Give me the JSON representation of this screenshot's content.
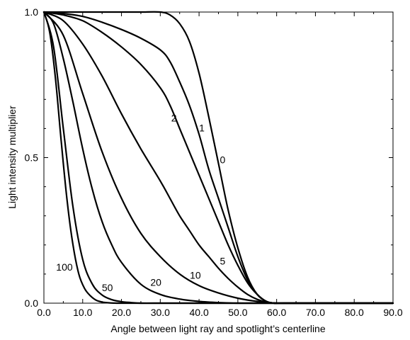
{
  "chart_data": {
    "type": "line",
    "title": "",
    "xlabel": "Angle between light ray and spotlight’s centerline",
    "ylabel": "Light intensity multiplier",
    "xlim": [
      0,
      90
    ],
    "ylim": [
      0,
      1
    ],
    "grid": false,
    "legend": "none",
    "x_ticks": [
      "0.0",
      "10.0",
      "20.0",
      "30.0",
      "40.0",
      "50.0",
      "60.0",
      "70.0",
      "80.0",
      "90.0"
    ],
    "x_tick_values": [
      0,
      10,
      20,
      30,
      40,
      50,
      60,
      70,
      80,
      90
    ],
    "y_ticks": [
      "0.0",
      "0.5",
      "1.0"
    ],
    "y_tick_values": [
      0,
      0.5,
      1.0
    ],
    "series": [
      {
        "name": "0",
        "x": [
          0,
          5,
          10,
          15,
          20,
          25,
          30,
          32.5,
          35,
          37.5,
          40,
          42.5,
          45,
          47.5,
          50,
          52.5,
          55,
          57.5,
          60,
          62,
          90
        ],
        "y": [
          1,
          1,
          1,
          1,
          1,
          1,
          1,
          0.99,
          0.96,
          0.9,
          0.79,
          0.64,
          0.48,
          0.32,
          0.19,
          0.09,
          0.03,
          0.005,
          0,
          0,
          0
        ]
      },
      {
        "name": "1",
        "x": [
          0,
          5,
          10,
          15,
          20,
          25,
          30,
          32.5,
          35,
          37.5,
          40,
          42.5,
          45,
          47.5,
          50,
          52.5,
          55,
          57.5,
          60,
          62,
          90
        ],
        "y": [
          1,
          0.995,
          0.985,
          0.965,
          0.94,
          0.91,
          0.87,
          0.83,
          0.76,
          0.68,
          0.58,
          0.46,
          0.36,
          0.26,
          0.16,
          0.08,
          0.03,
          0.005,
          0,
          0,
          0
        ]
      },
      {
        "name": "2",
        "x": [
          0,
          5,
          10,
          15,
          20,
          25,
          30,
          32.5,
          35,
          37.5,
          40,
          42.5,
          45,
          47.5,
          50,
          52.5,
          55,
          57.5,
          60,
          62,
          90
        ],
        "y": [
          1,
          0.99,
          0.97,
          0.93,
          0.88,
          0.82,
          0.74,
          0.68,
          0.6,
          0.52,
          0.44,
          0.36,
          0.28,
          0.2,
          0.13,
          0.07,
          0.03,
          0.005,
          0,
          0,
          0
        ]
      },
      {
        "name": "5",
        "x": [
          0,
          5,
          10,
          15,
          20,
          25,
          30,
          32.5,
          35,
          37.5,
          40,
          42.5,
          45,
          47.5,
          50,
          52.5,
          55,
          57.5,
          60,
          62,
          90
        ],
        "y": [
          1,
          0.97,
          0.89,
          0.78,
          0.65,
          0.53,
          0.42,
          0.36,
          0.3,
          0.25,
          0.2,
          0.16,
          0.12,
          0.085,
          0.055,
          0.03,
          0.013,
          0.003,
          0,
          0,
          0
        ]
      },
      {
        "name": "10",
        "x": [
          0,
          5,
          10,
          15,
          20,
          25,
          30,
          35,
          40,
          45,
          50,
          55,
          60,
          62,
          90
        ],
        "y": [
          1,
          0.92,
          0.72,
          0.52,
          0.36,
          0.24,
          0.16,
          0.1,
          0.06,
          0.035,
          0.017,
          0.006,
          0,
          0,
          0
        ]
      },
      {
        "name": "20",
        "x": [
          0,
          2.5,
          5,
          7.5,
          10,
          12.5,
          15,
          17.5,
          20,
          25,
          30,
          35,
          40,
          45,
          50,
          55,
          60,
          62,
          90
        ],
        "y": [
          1,
          0.96,
          0.84,
          0.69,
          0.53,
          0.39,
          0.28,
          0.2,
          0.14,
          0.065,
          0.03,
          0.014,
          0.006,
          0.002,
          0,
          0,
          0,
          0,
          0
        ]
      },
      {
        "name": "50",
        "x": [
          0,
          2.5,
          5,
          7.5,
          10,
          12.5,
          15,
          17.5,
          20,
          22.5,
          25,
          30,
          35,
          40,
          90
        ],
        "y": [
          1,
          0.88,
          0.6,
          0.33,
          0.15,
          0.065,
          0.028,
          0.012,
          0.005,
          0.002,
          0,
          0,
          0,
          0,
          0
        ]
      },
      {
        "name": "100",
        "x": [
          0,
          1.5,
          3,
          4.5,
          6,
          7.5,
          9,
          10.5,
          12,
          13.5,
          15,
          17,
          20,
          25,
          90
        ],
        "y": [
          1,
          0.93,
          0.77,
          0.55,
          0.35,
          0.2,
          0.1,
          0.05,
          0.025,
          0.01,
          0.004,
          0.001,
          0,
          0,
          0
        ]
      }
    ]
  }
}
